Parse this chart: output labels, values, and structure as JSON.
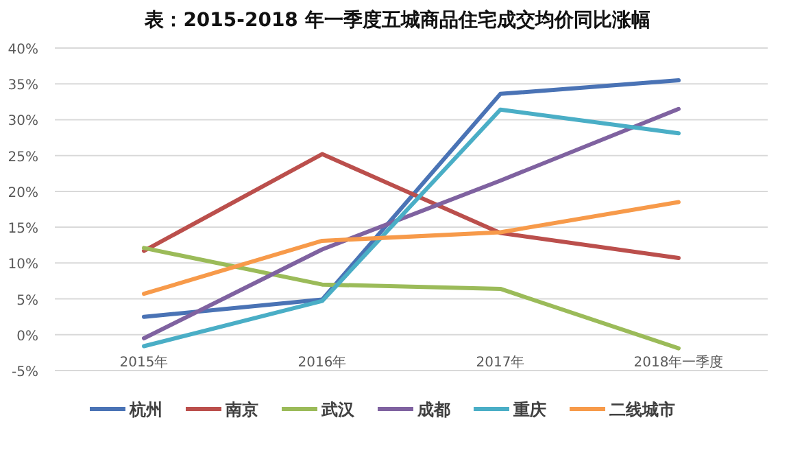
{
  "chart_data": {
    "type": "line",
    "title": "表：2015-2018 年一季度五城商品住宅成交均价同比涨幅",
    "categories": [
      "2015年",
      "2016年",
      "2017年",
      "2018年一季度"
    ],
    "series": [
      {
        "name": "杭州",
        "color": "#4a73b5",
        "values": [
          2.5,
          4.9,
          33.6,
          35.5
        ]
      },
      {
        "name": "南京",
        "color": "#bb4f4c",
        "values": [
          11.7,
          25.2,
          14.2,
          10.7
        ]
      },
      {
        "name": "武汉",
        "color": "#9bbb59",
        "values": [
          12.1,
          7.0,
          6.4,
          -1.9
        ]
      },
      {
        "name": "成都",
        "color": "#7f62a0",
        "values": [
          -0.5,
          11.9,
          21.5,
          31.5
        ]
      },
      {
        "name": "重庆",
        "color": "#4aaec6",
        "values": [
          -1.6,
          4.7,
          31.4,
          28.1
        ]
      },
      {
        "name": "二线城市",
        "color": "#f79a4a",
        "values": [
          5.7,
          13.1,
          14.3,
          18.5
        ]
      }
    ],
    "ylim": [
      -5,
      40
    ],
    "yticks": [
      {
        "value": -5,
        "label": "-5%"
      },
      {
        "value": 0,
        "label": "0%"
      },
      {
        "value": 5,
        "label": "5%"
      },
      {
        "value": 10,
        "label": "10%"
      },
      {
        "value": 15,
        "label": "15%"
      },
      {
        "value": 20,
        "label": "20%"
      },
      {
        "value": 25,
        "label": "25%"
      },
      {
        "value": 30,
        "label": "30%"
      },
      {
        "value": 35,
        "label": "35%"
      },
      {
        "value": 40,
        "label": "40%"
      }
    ],
    "grid": "y",
    "legend": "bottom",
    "marker": "none",
    "line_style": "solid"
  }
}
